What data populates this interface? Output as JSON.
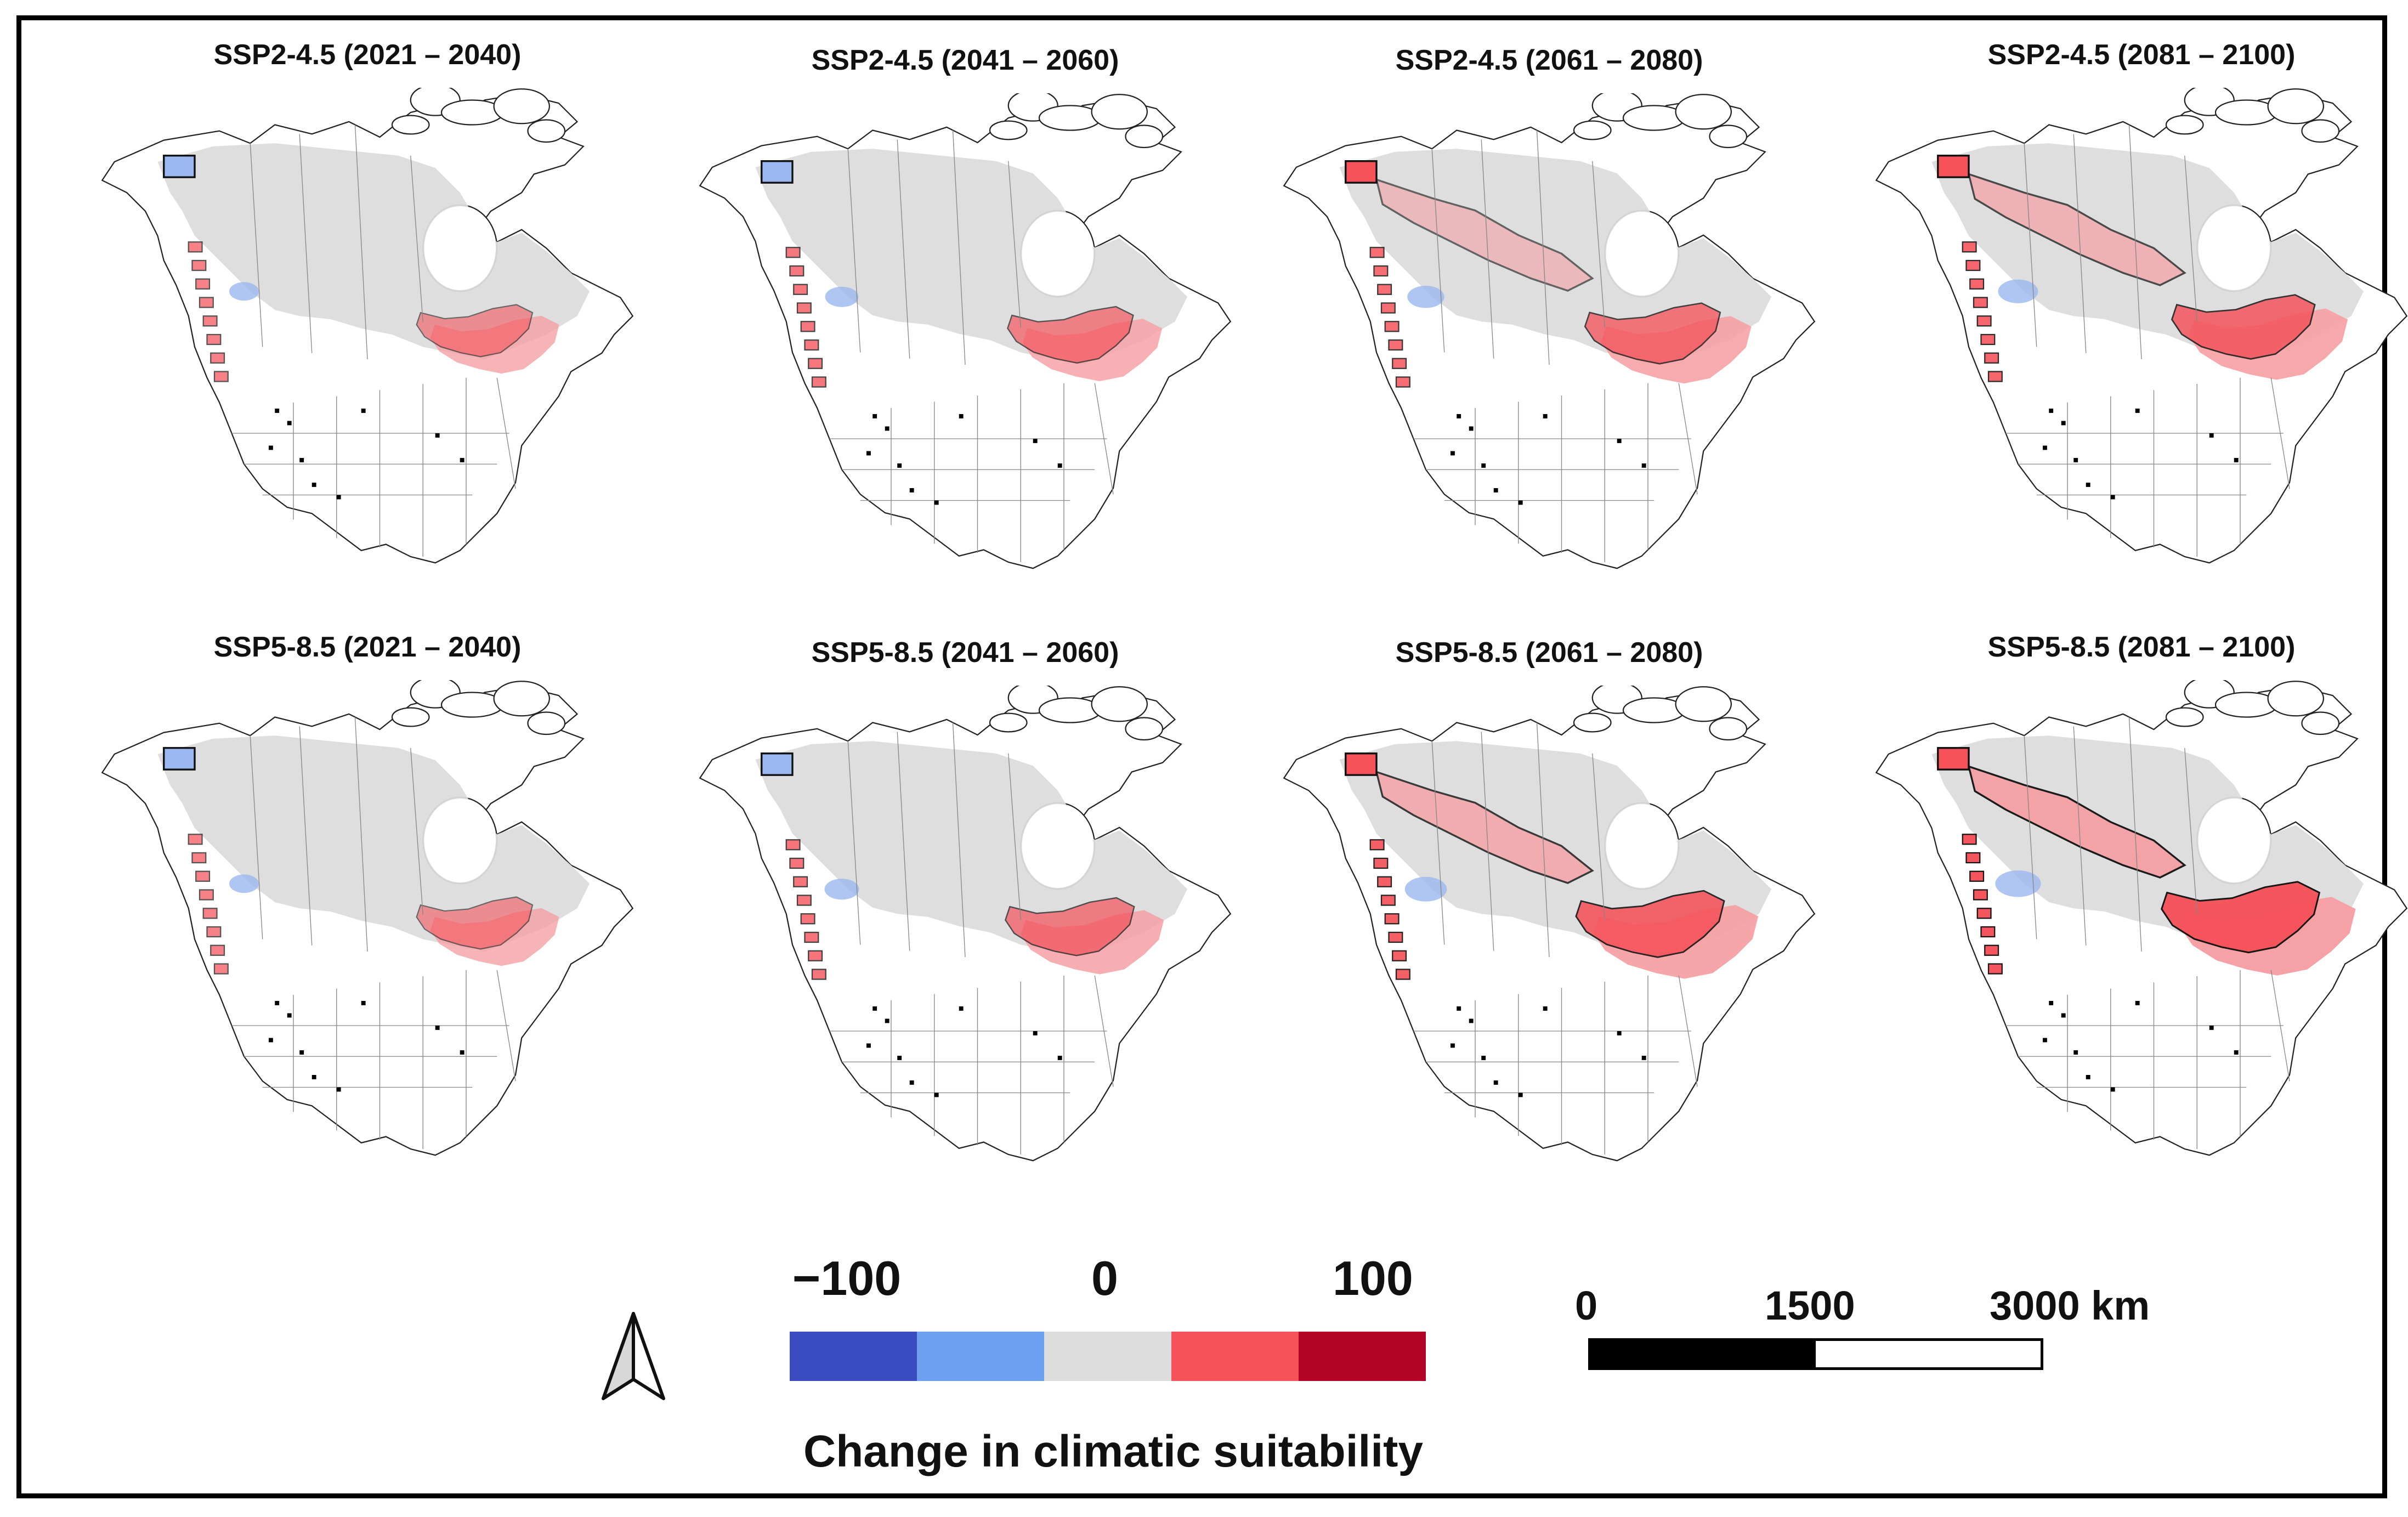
{
  "panels": [
    {
      "title": "SSP2-4.5 (2021 – 2040)",
      "intensity": 0.3
    },
    {
      "title": "SSP2-4.5 (2041 – 2060)",
      "intensity": 0.45
    },
    {
      "title": "SSP2-4.5 (2061 – 2080)",
      "intensity": 0.6
    },
    {
      "title": "SSP2-4.5 (2081 – 2100)",
      "intensity": 0.72
    },
    {
      "title": "SSP5-8.5 (2021 – 2040)",
      "intensity": 0.3
    },
    {
      "title": "SSP5-8.5 (2041 – 2060)",
      "intensity": 0.5
    },
    {
      "title": "SSP5-8.5 (2061 – 2080)",
      "intensity": 0.8
    },
    {
      "title": "SSP5-8.5 (2081 – 2100)",
      "intensity": 0.95
    }
  ],
  "legend": {
    "min_label": "−100",
    "mid_label": "0",
    "max_label": "100",
    "title": "Change in climatic suitability",
    "colors": [
      "#3b4cc0",
      "#6ea0f2",
      "#dcdcdc",
      "#f5525a",
      "#b40426"
    ]
  },
  "scale_bar": {
    "label_0": "0",
    "label_1": "1500",
    "label_2": "3000 km"
  },
  "colors": {
    "land_gray": "#dcdcdc",
    "outline": "#222222",
    "boundary": "#111111",
    "gain_light": "#f5a0a4",
    "gain": "#f5525a",
    "gain_dark": "#c8102e",
    "loss": "#9bb8f0"
  }
}
